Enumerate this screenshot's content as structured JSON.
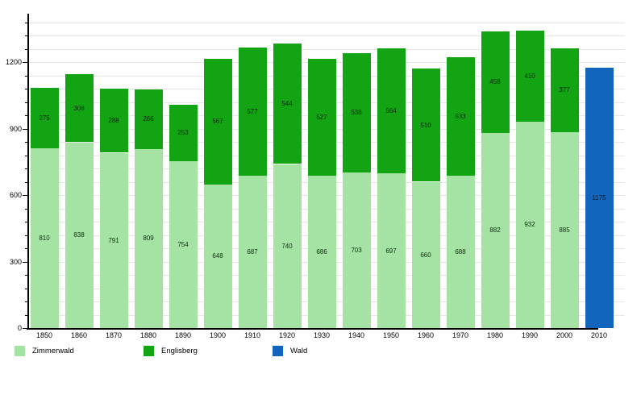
{
  "chart_data": {
    "type": "bar",
    "stacked": true,
    "title": "",
    "xlabel": "",
    "ylabel": "",
    "categories": [
      "1850",
      "1860",
      "1870",
      "1880",
      "1890",
      "1900",
      "1910",
      "1920",
      "1930",
      "1940",
      "1950",
      "1960",
      "1970",
      "1980",
      "1990",
      "2000",
      "2010"
    ],
    "series": [
      {
        "name": "Zimmerwald",
        "color": "#a5e3a5",
        "label_color": "#0d2e0d",
        "values": [
          810,
          838,
          791,
          809,
          754,
          648,
          687,
          740,
          686,
          703,
          697,
          660,
          688,
          882,
          932,
          885,
          null
        ]
      },
      {
        "name": "Englisberg",
        "color": "#12a412",
        "label_color": "#082808",
        "values": [
          275,
          308,
          288,
          266,
          253,
          567,
          577,
          544,
          527,
          538,
          564,
          510,
          533,
          458,
          410,
          377,
          null
        ]
      },
      {
        "name": "Wald",
        "color": "#1165bd",
        "label_color": "#081f3a",
        "values": [
          null,
          null,
          null,
          null,
          null,
          null,
          null,
          null,
          null,
          null,
          null,
          null,
          null,
          null,
          null,
          null,
          1175
        ]
      }
    ],
    "ylim": [
      0,
      1400
    ],
    "yticks": [
      0,
      300,
      600,
      900,
      1200
    ],
    "minor_step": 60,
    "grid": true,
    "legend_position": "bottom"
  }
}
